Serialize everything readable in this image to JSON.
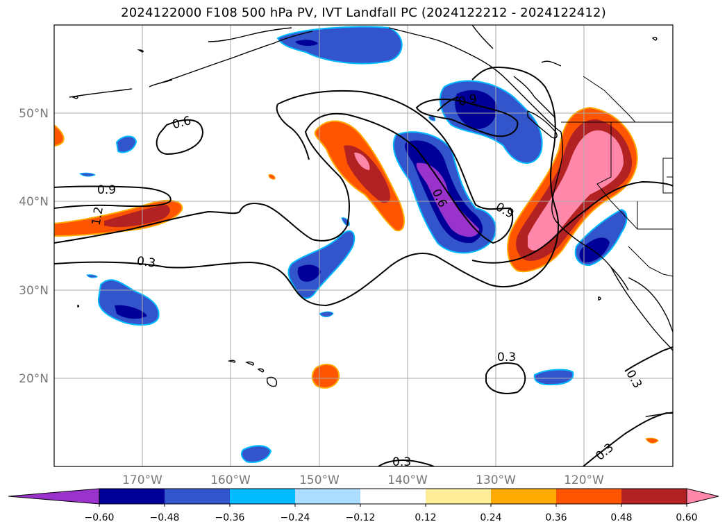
{
  "title": "2024122000 F108 500 hPa PV, IVT Landfall PC (2024122212 - 2024122412)",
  "map": {
    "lon_range": [
      -180,
      -110
    ],
    "lat_range": [
      10,
      60
    ],
    "lat_labels": [
      "50°N",
      "40°N",
      "30°N",
      "20°N"
    ],
    "lon_labels": [
      "170°W",
      "160°W",
      "150°W",
      "140°W",
      "130°W",
      "120°W"
    ],
    "grid": true
  },
  "contour_labels": [
    "0.6",
    "0.9",
    "1.2",
    "0.3",
    "0.9",
    "0.6",
    "0.9",
    "0.3",
    "0.3",
    "0.3",
    "0.3"
  ],
  "colorbar": {
    "ticks": [
      "−0.60",
      "−0.48",
      "−0.36",
      "−0.24",
      "−0.12",
      "0.12",
      "0.24",
      "0.36",
      "0.48",
      "0.60"
    ],
    "colors": [
      "#9933cc",
      "#000099",
      "#3355cc",
      "#00bbff",
      "#aaddff",
      "#ffffff",
      "#ffee99",
      "#ffaa00",
      "#ff5500",
      "#b22222",
      "#ff88aa"
    ],
    "extend": "both"
  }
}
